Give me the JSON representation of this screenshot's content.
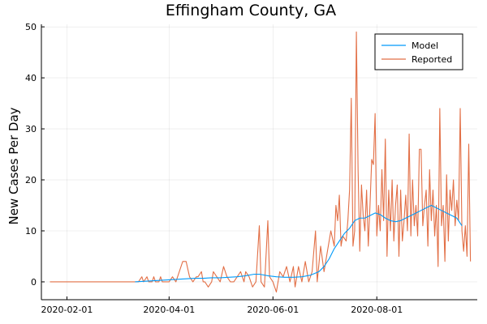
{
  "chart_data": {
    "type": "line",
    "title": "Effingham County, GA",
    "xlabel": "",
    "ylabel": "New Cases Per Day",
    "x_ticks": [
      "2020-02-01",
      "2020-04-01",
      "2020-06-01",
      "2020-08-01"
    ],
    "y_ticks": [
      0,
      10,
      20,
      30,
      40,
      50
    ],
    "xlim": [
      "2020-01-17",
      "2020-09-29"
    ],
    "ylim": [
      -3.5,
      50.5
    ],
    "grid": true,
    "legend_position": "top-right",
    "series": [
      {
        "name": "Model",
        "color": "#009af9",
        "points": [
          [
            "2020-03-12",
            0
          ],
          [
            "2020-03-17",
            0.1
          ],
          [
            "2020-03-22",
            0.2
          ],
          [
            "2020-03-27",
            0.3
          ],
          [
            "2020-04-01",
            0.4
          ],
          [
            "2020-04-06",
            0.5
          ],
          [
            "2020-04-11",
            0.6
          ],
          [
            "2020-04-16",
            0.7
          ],
          [
            "2020-04-21",
            0.7
          ],
          [
            "2020-04-26",
            0.8
          ],
          [
            "2020-05-01",
            0.8
          ],
          [
            "2020-05-06",
            0.9
          ],
          [
            "2020-05-11",
            1.0
          ],
          [
            "2020-05-16",
            1.2
          ],
          [
            "2020-05-21",
            1.5
          ],
          [
            "2020-05-24",
            1.5
          ],
          [
            "2020-05-29",
            1.2
          ],
          [
            "2020-06-03",
            1.0
          ],
          [
            "2020-06-08",
            0.9
          ],
          [
            "2020-06-13",
            0.9
          ],
          [
            "2020-06-18",
            1.0
          ],
          [
            "2020-06-23",
            1.3
          ],
          [
            "2020-06-28",
            2.0
          ],
          [
            "2020-07-01",
            3.0
          ],
          [
            "2020-07-04",
            4.5
          ],
          [
            "2020-07-07",
            6.5
          ],
          [
            "2020-07-10",
            8.0
          ],
          [
            "2020-07-13",
            9.5
          ],
          [
            "2020-07-16",
            10.5
          ],
          [
            "2020-07-19",
            12.0
          ],
          [
            "2020-07-22",
            12.5
          ],
          [
            "2020-07-25",
            12.5
          ],
          [
            "2020-07-28",
            13.0
          ],
          [
            "2020-07-31",
            13.5
          ],
          [
            "2020-08-03",
            13.2
          ],
          [
            "2020-08-06",
            12.5
          ],
          [
            "2020-08-09",
            12.0
          ],
          [
            "2020-08-12",
            11.8
          ],
          [
            "2020-08-15",
            12.0
          ],
          [
            "2020-08-18",
            12.5
          ],
          [
            "2020-08-21",
            13.0
          ],
          [
            "2020-08-24",
            13.5
          ],
          [
            "2020-08-27",
            14.0
          ],
          [
            "2020-08-30",
            14.5
          ],
          [
            "2020-09-02",
            15.0
          ],
          [
            "2020-09-05",
            14.5
          ],
          [
            "2020-09-08",
            14.0
          ],
          [
            "2020-09-11",
            13.5
          ],
          [
            "2020-09-14",
            13.0
          ],
          [
            "2020-09-17",
            12.5
          ],
          [
            "2020-09-20",
            11.0
          ]
        ]
      },
      {
        "name": "Reported",
        "color": "#e26f46",
        "points": [
          [
            "2020-01-22",
            0
          ],
          [
            "2020-03-14",
            0
          ],
          [
            "2020-03-16",
            1
          ],
          [
            "2020-03-17",
            0
          ],
          [
            "2020-03-19",
            1
          ],
          [
            "2020-03-20",
            0
          ],
          [
            "2020-03-22",
            0
          ],
          [
            "2020-03-23",
            1
          ],
          [
            "2020-03-24",
            0
          ],
          [
            "2020-03-26",
            0
          ],
          [
            "2020-03-27",
            1
          ],
          [
            "2020-03-28",
            0
          ],
          [
            "2020-04-01",
            0
          ],
          [
            "2020-04-03",
            1
          ],
          [
            "2020-04-05",
            0
          ],
          [
            "2020-04-07",
            2
          ],
          [
            "2020-04-09",
            4
          ],
          [
            "2020-04-11",
            4
          ],
          [
            "2020-04-13",
            1
          ],
          [
            "2020-04-15",
            0
          ],
          [
            "2020-04-17",
            1
          ],
          [
            "2020-04-18",
            1
          ],
          [
            "2020-04-20",
            2
          ],
          [
            "2020-04-21",
            0
          ],
          [
            "2020-04-22",
            0
          ],
          [
            "2020-04-24",
            -1
          ],
          [
            "2020-04-26",
            0
          ],
          [
            "2020-04-27",
            2
          ],
          [
            "2020-04-29",
            1
          ],
          [
            "2020-05-01",
            0
          ],
          [
            "2020-05-03",
            3
          ],
          [
            "2020-05-05",
            1
          ],
          [
            "2020-05-07",
            0
          ],
          [
            "2020-05-09",
            0
          ],
          [
            "2020-05-11",
            1
          ],
          [
            "2020-05-13",
            2
          ],
          [
            "2020-05-15",
            0
          ],
          [
            "2020-05-16",
            2
          ],
          [
            "2020-05-18",
            1
          ],
          [
            "2020-05-20",
            -1
          ],
          [
            "2020-05-22",
            0
          ],
          [
            "2020-05-24",
            11
          ],
          [
            "2020-05-25",
            0
          ],
          [
            "2020-05-27",
            -1
          ],
          [
            "2020-05-29",
            12
          ],
          [
            "2020-05-30",
            1
          ],
          [
            "2020-06-01",
            0
          ],
          [
            "2020-06-03",
            -2
          ],
          [
            "2020-06-05",
            2
          ],
          [
            "2020-06-07",
            1
          ],
          [
            "2020-06-09",
            3
          ],
          [
            "2020-06-11",
            0
          ],
          [
            "2020-06-13",
            3
          ],
          [
            "2020-06-14",
            -1
          ],
          [
            "2020-06-16",
            3
          ],
          [
            "2020-06-18",
            0
          ],
          [
            "2020-06-20",
            4
          ],
          [
            "2020-06-22",
            0
          ],
          [
            "2020-06-24",
            2
          ],
          [
            "2020-06-26",
            10
          ],
          [
            "2020-06-27",
            0
          ],
          [
            "2020-06-29",
            7
          ],
          [
            "2020-07-01",
            2
          ],
          [
            "2020-07-03",
            6
          ],
          [
            "2020-07-05",
            10
          ],
          [
            "2020-07-07",
            7
          ],
          [
            "2020-07-08",
            15
          ],
          [
            "2020-07-09",
            12
          ],
          [
            "2020-07-10",
            17
          ],
          [
            "2020-07-11",
            7
          ],
          [
            "2020-07-12",
            9
          ],
          [
            "2020-07-14",
            8
          ],
          [
            "2020-07-15",
            12
          ],
          [
            "2020-07-16",
            18
          ],
          [
            "2020-07-17",
            36
          ],
          [
            "2020-07-18",
            7
          ],
          [
            "2020-07-19",
            10
          ],
          [
            "2020-07-20",
            49
          ],
          [
            "2020-07-21",
            22
          ],
          [
            "2020-07-22",
            6
          ],
          [
            "2020-07-23",
            19
          ],
          [
            "2020-07-24",
            13
          ],
          [
            "2020-07-25",
            10
          ],
          [
            "2020-07-26",
            18
          ],
          [
            "2020-07-27",
            7
          ],
          [
            "2020-07-28",
            15
          ],
          [
            "2020-07-29",
            24
          ],
          [
            "2020-07-30",
            23
          ],
          [
            "2020-07-31",
            33
          ],
          [
            "2020-08-01",
            9
          ],
          [
            "2020-08-02",
            15
          ],
          [
            "2020-08-03",
            10
          ],
          [
            "2020-08-04",
            22
          ],
          [
            "2020-08-05",
            12
          ],
          [
            "2020-08-06",
            28
          ],
          [
            "2020-08-07",
            5
          ],
          [
            "2020-08-08",
            18
          ],
          [
            "2020-08-09",
            10
          ],
          [
            "2020-08-10",
            20
          ],
          [
            "2020-08-11",
            8
          ],
          [
            "2020-08-12",
            15
          ],
          [
            "2020-08-13",
            19
          ],
          [
            "2020-08-14",
            5
          ],
          [
            "2020-08-15",
            18
          ],
          [
            "2020-08-16",
            8
          ],
          [
            "2020-08-17",
            12
          ],
          [
            "2020-08-18",
            17
          ],
          [
            "2020-08-19",
            10
          ],
          [
            "2020-08-20",
            29
          ],
          [
            "2020-08-21",
            9
          ],
          [
            "2020-08-22",
            20
          ],
          [
            "2020-08-23",
            11
          ],
          [
            "2020-08-24",
            15
          ],
          [
            "2020-08-25",
            9
          ],
          [
            "2020-08-26",
            26
          ],
          [
            "2020-08-27",
            26
          ],
          [
            "2020-08-28",
            11
          ],
          [
            "2020-08-29",
            15
          ],
          [
            "2020-08-30",
            18
          ],
          [
            "2020-08-31",
            7
          ],
          [
            "2020-09-01",
            22
          ],
          [
            "2020-09-02",
            12
          ],
          [
            "2020-09-03",
            18
          ],
          [
            "2020-09-04",
            9
          ],
          [
            "2020-09-05",
            15
          ],
          [
            "2020-09-06",
            3
          ],
          [
            "2020-09-07",
            34
          ],
          [
            "2020-09-08",
            11
          ],
          [
            "2020-09-09",
            15
          ],
          [
            "2020-09-10",
            4
          ],
          [
            "2020-09-11",
            21
          ],
          [
            "2020-09-12",
            8
          ],
          [
            "2020-09-13",
            18
          ],
          [
            "2020-09-14",
            14
          ],
          [
            "2020-09-15",
            20
          ],
          [
            "2020-09-16",
            11
          ],
          [
            "2020-09-17",
            16
          ],
          [
            "2020-09-18",
            12
          ],
          [
            "2020-09-19",
            34
          ],
          [
            "2020-09-20",
            10
          ],
          [
            "2020-09-21",
            6
          ],
          [
            "2020-09-22",
            11
          ],
          [
            "2020-09-23",
            5
          ],
          [
            "2020-09-24",
            27
          ],
          [
            "2020-09-25",
            4
          ]
        ]
      }
    ]
  }
}
